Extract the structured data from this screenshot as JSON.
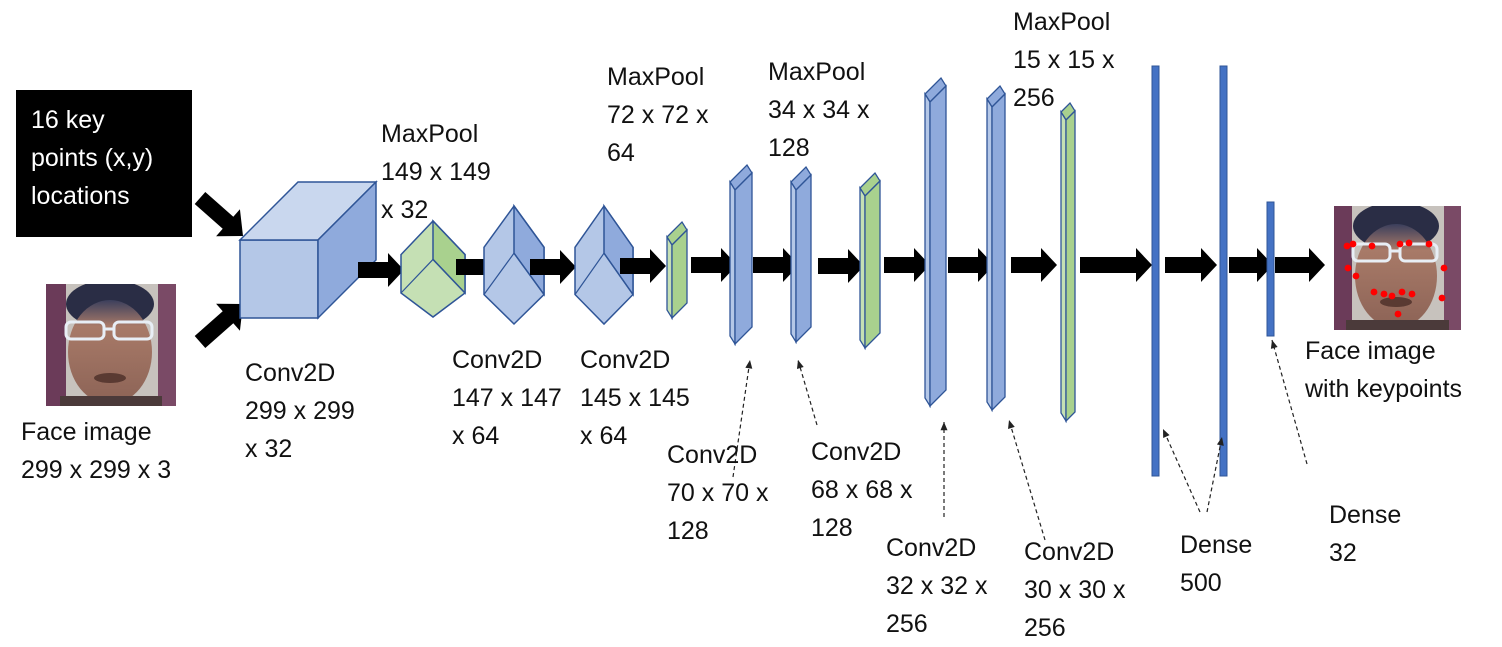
{
  "diagram": {
    "inputs": {
      "keypoints": {
        "lines": [
          "16 key",
          "points (x,y)",
          "locations"
        ]
      },
      "face_image": {
        "lines": [
          "Face image",
          "299 x 299 x 3"
        ]
      }
    },
    "output": {
      "lines": [
        "Face image",
        "with keypoints"
      ]
    },
    "layers": [
      {
        "kind": "Conv2D",
        "lines": [
          "Conv2D",
          "299 x 299",
          "x 32"
        ]
      },
      {
        "kind": "MaxPool",
        "lines": [
          "MaxPool",
          "149 x 149",
          "x 32"
        ]
      },
      {
        "kind": "Conv2D",
        "lines": [
          "Conv2D",
          "147 x 147",
          "x 64"
        ]
      },
      {
        "kind": "Conv2D",
        "lines": [
          "Conv2D",
          "145 x 145",
          "x 64"
        ]
      },
      {
        "kind": "MaxPool",
        "lines": [
          "MaxPool",
          "72 x 72 x",
          "64"
        ]
      },
      {
        "kind": "Conv2D",
        "lines": [
          "Conv2D",
          "70 x 70 x",
          "128"
        ]
      },
      {
        "kind": "Conv2D",
        "lines": [
          "Conv2D",
          "68 x 68 x",
          "128"
        ]
      },
      {
        "kind": "MaxPool",
        "lines": [
          "MaxPool",
          "34 x 34 x",
          "128"
        ]
      },
      {
        "kind": "Conv2D",
        "lines": [
          "Conv2D",
          "32 x 32 x",
          "256"
        ]
      },
      {
        "kind": "Conv2D",
        "lines": [
          "Conv2D",
          "30 x 30 x",
          "256"
        ]
      },
      {
        "kind": "MaxPool",
        "lines": [
          "MaxPool",
          "15 x 15 x",
          "256"
        ]
      },
      {
        "kind": "Dense",
        "lines": [
          "Dense",
          "500"
        ]
      },
      {
        "kind": "Dense",
        "lines": [
          "Dense",
          "32"
        ]
      }
    ],
    "colors": {
      "conv_fill": "#b4c7e7",
      "conv_side": "#8faadc",
      "pool_fill": "#c5e0b4",
      "pool_side": "#a9d18e",
      "dense_fill": "#4472c4",
      "outline": "#2f5597",
      "arrow": "#000000",
      "keypoint": "#ff0000"
    }
  }
}
